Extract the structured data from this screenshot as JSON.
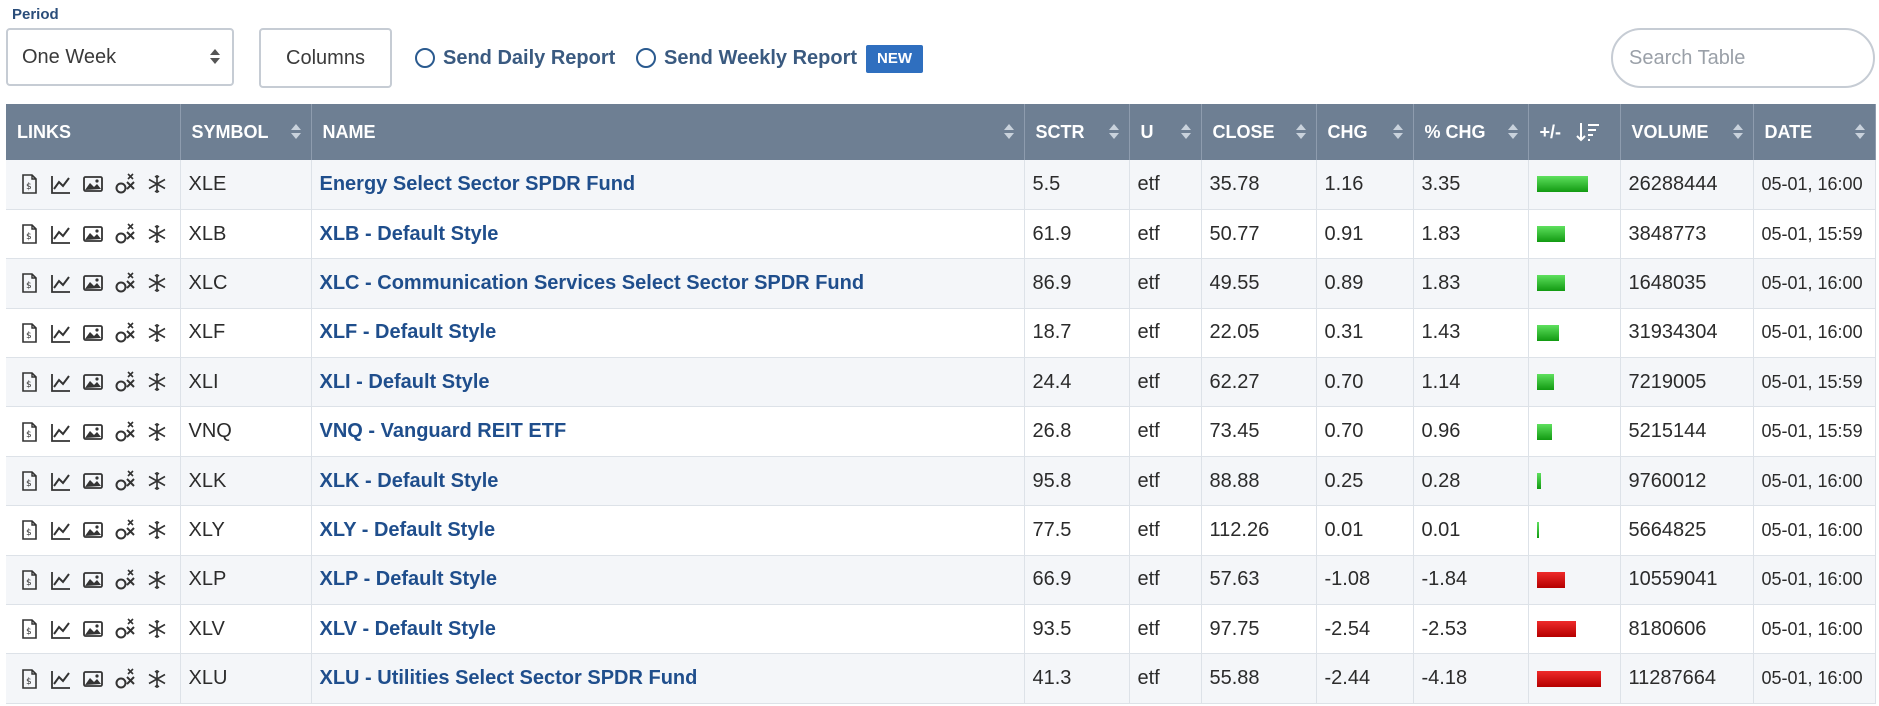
{
  "toolbar": {
    "period_label": "Period",
    "period_value": "One Week",
    "columns_label": "Columns",
    "daily_report_label": "Send Daily Report",
    "weekly_report_label": "Send Weekly Report",
    "new_badge": "NEW",
    "search_placeholder": "Search Table"
  },
  "table": {
    "headers": {
      "links": "LINKS",
      "symbol": "SYMBOL",
      "name": "NAME",
      "sctr": "SCTR",
      "u": "U",
      "close": "CLOSE",
      "chg": "CHG",
      "pct_chg": "% CHG",
      "plus_minus": "+/-",
      "volume": "VOLUME",
      "date": "DATE"
    },
    "link_icons": [
      "summary-icon",
      "chart-icon",
      "image-chart-icon",
      "pnf-chart-icon",
      "seasonality-icon"
    ],
    "colors": {
      "positive_bar": "#1fb31f",
      "negative_bar": "#d40000"
    },
    "rows": [
      {
        "symbol": "XLE",
        "name": "Energy Select Sector SPDR Fund",
        "sctr": "5.5",
        "u": "etf",
        "close": "35.78",
        "chg": "1.16",
        "pct_chg": "3.35",
        "bar_pct": 3.35,
        "volume": "26288444",
        "date": "05-01, 16:00"
      },
      {
        "symbol": "XLB",
        "name": "XLB - Default Style",
        "sctr": "61.9",
        "u": "etf",
        "close": "50.77",
        "chg": "0.91",
        "pct_chg": "1.83",
        "bar_pct": 1.83,
        "volume": "3848773",
        "date": "05-01, 15:59"
      },
      {
        "symbol": "XLC",
        "name": "XLC - Communication Services Select Sector SPDR Fund",
        "sctr": "86.9",
        "u": "etf",
        "close": "49.55",
        "chg": "0.89",
        "pct_chg": "1.83",
        "bar_pct": 1.83,
        "volume": "1648035",
        "date": "05-01, 16:00"
      },
      {
        "symbol": "XLF",
        "name": "XLF - Default Style",
        "sctr": "18.7",
        "u": "etf",
        "close": "22.05",
        "chg": "0.31",
        "pct_chg": "1.43",
        "bar_pct": 1.43,
        "volume": "31934304",
        "date": "05-01, 16:00"
      },
      {
        "symbol": "XLI",
        "name": "XLI - Default Style",
        "sctr": "24.4",
        "u": "etf",
        "close": "62.27",
        "chg": "0.70",
        "pct_chg": "1.14",
        "bar_pct": 1.14,
        "volume": "7219005",
        "date": "05-01, 15:59"
      },
      {
        "symbol": "VNQ",
        "name": "VNQ - Vanguard REIT ETF",
        "sctr": "26.8",
        "u": "etf",
        "close": "73.45",
        "chg": "0.70",
        "pct_chg": "0.96",
        "bar_pct": 0.96,
        "volume": "5215144",
        "date": "05-01, 15:59"
      },
      {
        "symbol": "XLK",
        "name": "XLK - Default Style",
        "sctr": "95.8",
        "u": "etf",
        "close": "88.88",
        "chg": "0.25",
        "pct_chg": "0.28",
        "bar_pct": 0.28,
        "volume": "9760012",
        "date": "05-01, 16:00"
      },
      {
        "symbol": "XLY",
        "name": "XLY - Default Style",
        "sctr": "77.5",
        "u": "etf",
        "close": "112.26",
        "chg": "0.01",
        "pct_chg": "0.01",
        "bar_pct": 0.01,
        "volume": "5664825",
        "date": "05-01, 16:00"
      },
      {
        "symbol": "XLP",
        "name": "XLP - Default Style",
        "sctr": "66.9",
        "u": "etf",
        "close": "57.63",
        "chg": "-1.08",
        "pct_chg": "-1.84",
        "bar_pct": -1.84,
        "volume": "10559041",
        "date": "05-01, 16:00"
      },
      {
        "symbol": "XLV",
        "name": "XLV - Default Style",
        "sctr": "93.5",
        "u": "etf",
        "close": "97.75",
        "chg": "-2.54",
        "pct_chg": "-2.53",
        "bar_pct": -2.53,
        "volume": "8180606",
        "date": "05-01, 16:00"
      },
      {
        "symbol": "XLU",
        "name": "XLU - Utilities Select Sector SPDR Fund",
        "sctr": "41.3",
        "u": "etf",
        "close": "55.88",
        "chg": "-2.44",
        "pct_chg": "-4.18",
        "bar_pct": -4.18,
        "volume": "11287664",
        "date": "05-01, 16:00"
      }
    ]
  }
}
